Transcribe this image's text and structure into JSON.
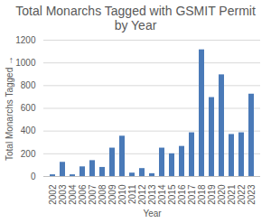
{
  "chart_data": {
    "type": "bar",
    "title": "Total Monarchs Tagged with GSMIT Permit\nby Year",
    "x_label": "Year",
    "y_label": "Total Monarchs Tagged",
    "categories": [
      "2002",
      "2003",
      "2004",
      "2006",
      "2007",
      "2008",
      "2009",
      "2010",
      "2011",
      "2012",
      "2013",
      "2014",
      "2015",
      "2016",
      "2017",
      "2018",
      "2019",
      "2020",
      "2021",
      "2022",
      "2023"
    ],
    "values": [
      15,
      125,
      15,
      85,
      140,
      80,
      250,
      355,
      30,
      70,
      25,
      250,
      200,
      265,
      385,
      1115,
      695,
      895,
      370,
      385,
      725
    ],
    "color": "#4a7ab8",
    "ylim": [
      0,
      1200
    ],
    "yticks": [
      0,
      200,
      400,
      600,
      800,
      1000,
      1200
    ],
    "grid": true
  }
}
